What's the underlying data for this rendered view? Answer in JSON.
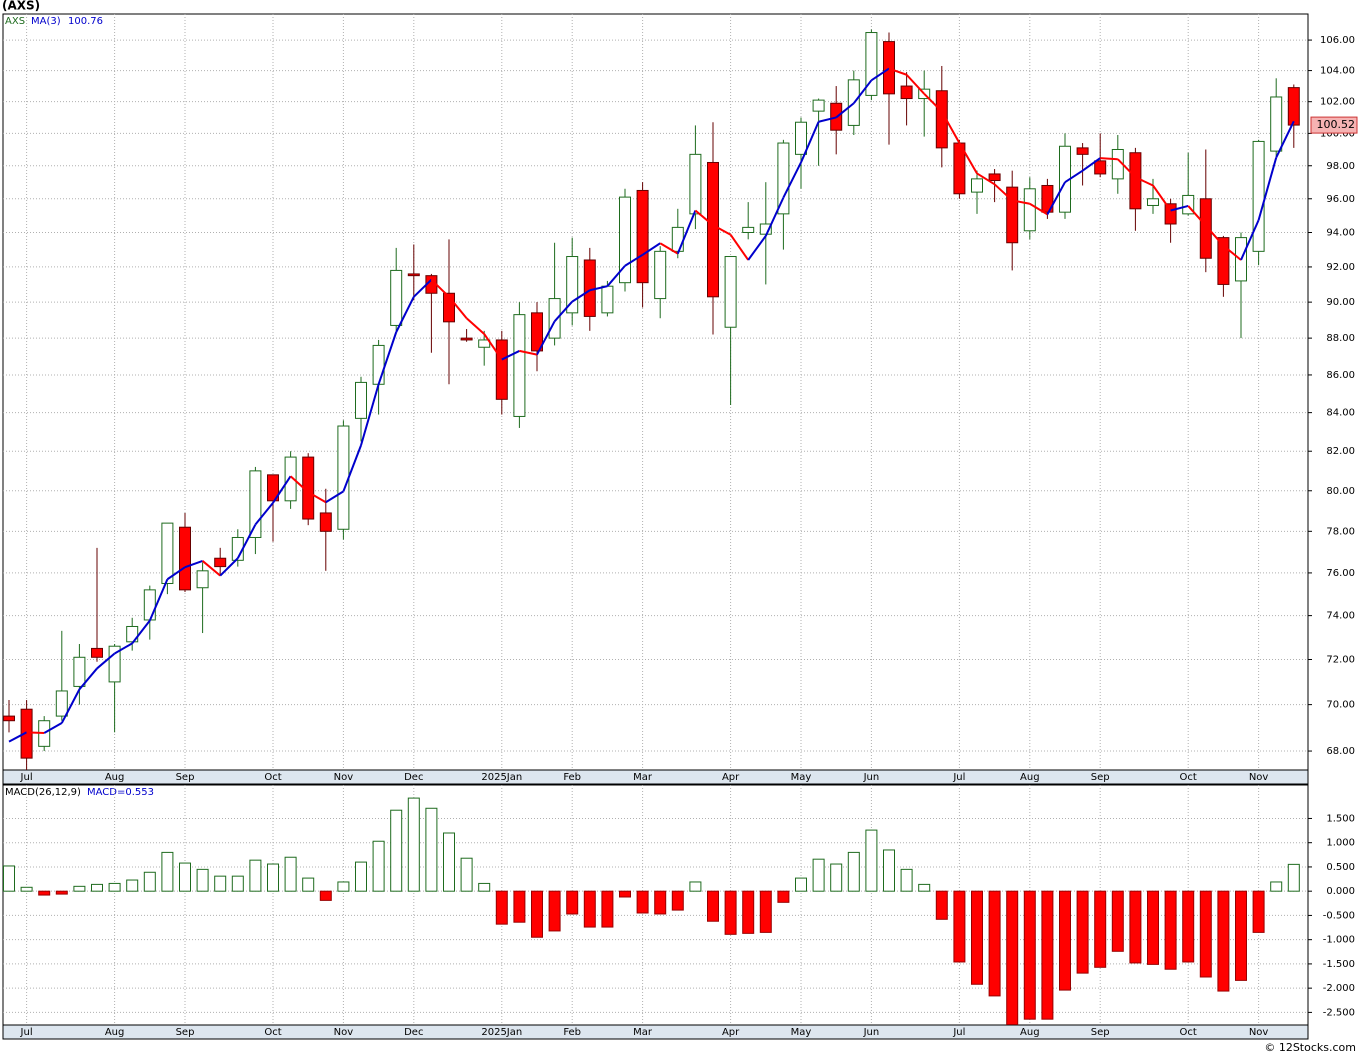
{
  "chart_data": [
    {
      "type": "candlestick",
      "title": "(AXS)",
      "ticker": "AXS",
      "log_scale": true,
      "grid": true,
      "categories": [
        null,
        "Jul",
        null,
        null,
        null,
        null,
        "Aug",
        null,
        null,
        null,
        "Sep",
        null,
        null,
        null,
        null,
        "Oct",
        null,
        null,
        null,
        "Nov",
        null,
        null,
        null,
        "Dec",
        null,
        null,
        null,
        null,
        "2025Jan",
        null,
        null,
        null,
        "Feb",
        null,
        null,
        null,
        "Mar",
        null,
        null,
        null,
        null,
        "Apr",
        null,
        null,
        null,
        "May",
        null,
        null,
        null,
        "Jun",
        null,
        null,
        null,
        null,
        "Jul",
        null,
        null,
        null,
        "Aug",
        null,
        null,
        null,
        "Sep",
        null,
        null,
        null,
        null,
        "Oct",
        null,
        null,
        null,
        "Nov",
        null,
        null
      ],
      "open": [
        69.5,
        69.8,
        68.2,
        69.5,
        70.8,
        72.5,
        71.0,
        72.8,
        73.8,
        75.5,
        78.2,
        75.3,
        76.7,
        76.6,
        77.7,
        80.8,
        79.5,
        81.7,
        78.9,
        78.1,
        83.7,
        85.5,
        88.7,
        91.6,
        91.5,
        90.5,
        88.0,
        87.5,
        87.9,
        83.8,
        89.4,
        88.0,
        89.4,
        92.4,
        89.4,
        91.1,
        96.5,
        90.2,
        92.9,
        95.1,
        98.2,
        88.6,
        94.0,
        93.9,
        95.1,
        98.7,
        101.4,
        101.9,
        100.5,
        102.4,
        105.9,
        103.0,
        102.2,
        102.7,
        99.4,
        96.4,
        97.5,
        96.7,
        94.1,
        96.8,
        95.2,
        99.1,
        98.3,
        97.2,
        98.8,
        95.6,
        95.7,
        95.1,
        96.0,
        93.7,
        91.2,
        92.9,
        98.9,
        102.9
      ],
      "high": [
        70.2,
        70.2,
        69.5,
        73.3,
        72.7,
        77.2,
        72.7,
        73.9,
        75.4,
        78.4,
        78.9,
        76.5,
        77.2,
        78.1,
        81.2,
        80.8,
        82.0,
        81.9,
        80.1,
        83.6,
        85.9,
        87.9,
        93.1,
        93.3,
        91.6,
        93.6,
        88.5,
        88.4,
        88.4,
        90.0,
        90.0,
        93.4,
        93.7,
        93.1,
        91.2,
        96.6,
        97.0,
        93.2,
        95.4,
        100.5,
        100.7,
        92.6,
        95.8,
        97.0,
        99.6,
        101.0,
        102.2,
        103.0,
        104.0,
        106.7,
        106.5,
        103.9,
        104.0,
        104.3,
        99.6,
        97.7,
        97.8,
        97.7,
        97.3,
        97.2,
        100.0,
        99.4,
        100.0,
        99.9,
        99.1,
        97.2,
        96.0,
        98.8,
        99.0,
        93.8,
        94.0,
        99.6,
        103.5,
        103.1
      ],
      "low": [
        68.8,
        67.2,
        68.0,
        69.3,
        70.0,
        71.9,
        68.8,
        72.4,
        72.9,
        75.0,
        75.1,
        73.2,
        75.9,
        76.3,
        76.9,
        77.5,
        79.1,
        78.3,
        76.1,
        77.6,
        82.5,
        83.9,
        88.4,
        90.1,
        87.2,
        85.5,
        87.8,
        86.5,
        83.9,
        83.2,
        86.2,
        87.6,
        88.7,
        88.4,
        89.2,
        90.6,
        89.7,
        89.1,
        92.5,
        94.2,
        88.2,
        84.4,
        93.6,
        91.0,
        93.0,
        96.6,
        98.0,
        98.7,
        99.9,
        102.1,
        99.3,
        100.5,
        99.8,
        97.9,
        96.0,
        95.1,
        95.8,
        91.8,
        93.6,
        94.8,
        94.8,
        96.8,
        97.3,
        96.3,
        94.1,
        95.1,
        93.4,
        95.0,
        91.7,
        90.3,
        88.0,
        92.1,
        98.6,
        99.1
      ],
      "close": [
        69.3,
        67.7,
        69.3,
        70.6,
        72.1,
        72.1,
        72.6,
        73.5,
        75.2,
        78.4,
        75.2,
        76.1,
        76.3,
        77.7,
        81.0,
        79.5,
        81.7,
        78.6,
        78.0,
        83.3,
        85.6,
        87.6,
        91.8,
        91.5,
        90.5,
        88.9,
        87.9,
        87.9,
        84.7,
        89.3,
        87.3,
        90.2,
        92.6,
        89.2,
        90.9,
        96.1,
        91.1,
        92.9,
        94.3,
        98.7,
        90.3,
        92.6,
        94.3,
        94.5,
        99.4,
        100.7,
        102.1,
        100.2,
        103.4,
        106.5,
        102.5,
        102.2,
        102.8,
        99.1,
        96.3,
        97.2,
        97.1,
        93.4,
        96.6,
        95.2,
        99.2,
        98.7,
        97.5,
        99.0,
        95.4,
        96.0,
        94.5,
        96.2,
        92.5,
        91.0,
        93.7,
        99.5,
        102.3,
        100.52
      ],
      "up_color": "#1e6b1e",
      "down_color": "#ff0000",
      "ma": {
        "name": "MA(3)",
        "last": 100.76,
        "up_color": "#0000cc",
        "down_color": "#ff0000",
        "values": [
          68.4,
          68.8,
          68.77,
          69.2,
          70.67,
          71.6,
          72.27,
          72.73,
          73.77,
          75.7,
          76.27,
          76.57,
          75.87,
          76.7,
          78.33,
          79.4,
          80.73,
          79.93,
          79.43,
          79.97,
          82.3,
          85.5,
          88.33,
          90.3,
          91.27,
          90.3,
          89.1,
          88.23,
          86.83,
          87.3,
          87.1,
          88.93,
          90.03,
          90.67,
          90.9,
          92.07,
          92.7,
          93.37,
          92.77,
          95.3,
          94.43,
          93.87,
          92.4,
          93.8,
          96.07,
          98.2,
          100.73,
          101.0,
          101.9,
          103.37,
          104.13,
          103.73,
          102.5,
          101.37,
          99.4,
          97.53,
          96.87,
          95.9,
          95.7,
          95.07,
          97.0,
          97.7,
          98.47,
          98.4,
          97.3,
          96.8,
          95.3,
          95.57,
          94.4,
          93.23,
          92.4,
          94.73,
          98.5,
          100.76
        ]
      },
      "last_price": 100.52,
      "ylim": [
        67.2,
        107.74
      ],
      "yticks": [
        {
          "value": 68,
          "label": "68.00"
        },
        {
          "value": 70,
          "label": "70.00"
        },
        {
          "value": 72,
          "label": "72.00"
        },
        {
          "value": 74,
          "label": "74.00"
        },
        {
          "value": 76,
          "label": "76.00"
        },
        {
          "value": 78,
          "label": "78.00"
        },
        {
          "value": 80,
          "label": "80.00"
        },
        {
          "value": 82,
          "label": "82.00"
        },
        {
          "value": 84,
          "label": "84.00"
        },
        {
          "value": 86,
          "label": "86.00"
        },
        {
          "value": 88,
          "label": "88.00"
        },
        {
          "value": 90,
          "label": "90.00"
        },
        {
          "value": 92,
          "label": "92.00"
        },
        {
          "value": 94,
          "label": "94.00"
        },
        {
          "value": 96,
          "label": "96.00"
        },
        {
          "value": 98,
          "label": "98.00"
        },
        {
          "value": 100,
          "label": "100.00"
        },
        {
          "value": 102,
          "label": "102.00"
        },
        {
          "value": 104,
          "label": "104.00"
        },
        {
          "value": 106,
          "label": "106.00"
        }
      ]
    },
    {
      "type": "bar",
      "title": "MACD(26,12,9)",
      "last_label": "MACD=0.553",
      "grid": true,
      "categories": [
        null,
        "Jul",
        null,
        null,
        null,
        null,
        "Aug",
        null,
        null,
        null,
        "Sep",
        null,
        null,
        null,
        null,
        "Oct",
        null,
        null,
        null,
        "Nov",
        null,
        null,
        null,
        "Dec",
        null,
        null,
        null,
        null,
        "2025Jan",
        null,
        null,
        null,
        "Feb",
        null,
        null,
        null,
        "Mar",
        null,
        null,
        null,
        null,
        "Apr",
        null,
        null,
        null,
        "May",
        null,
        null,
        null,
        "Jun",
        null,
        null,
        null,
        null,
        "Jul",
        null,
        null,
        null,
        "Aug",
        null,
        null,
        null,
        "Sep",
        null,
        null,
        null,
        null,
        "Oct",
        null,
        null,
        null,
        "Nov",
        null,
        null
      ],
      "values": [
        0.52,
        0.08,
        -0.08,
        -0.06,
        0.1,
        0.14,
        0.16,
        0.23,
        0.39,
        0.8,
        0.58,
        0.45,
        0.31,
        0.31,
        0.64,
        0.56,
        0.7,
        0.27,
        -0.19,
        0.19,
        0.6,
        1.03,
        1.67,
        1.92,
        1.71,
        1.2,
        0.68,
        0.16,
        -0.68,
        -0.64,
        -0.95,
        -0.82,
        -0.47,
        -0.74,
        -0.74,
        -0.12,
        -0.45,
        -0.47,
        -0.39,
        0.19,
        -0.62,
        -0.89,
        -0.87,
        -0.85,
        -0.23,
        0.27,
        0.66,
        0.56,
        0.8,
        1.26,
        0.85,
        0.45,
        0.14,
        -0.58,
        -1.46,
        -1.92,
        -2.16,
        -2.75,
        -2.64,
        -2.64,
        -2.04,
        -1.69,
        -1.57,
        -1.24,
        -1.48,
        -1.51,
        -1.61,
        -1.46,
        -1.77,
        -2.06,
        -1.84,
        -0.85,
        0.19,
        0.553
      ],
      "pos_color": "#1e6b1e",
      "neg_color": "#ff0000",
      "ylim": [
        -2.76,
        2.19
      ],
      "yticks": [
        {
          "value": 1.5,
          "label": "1.500"
        },
        {
          "value": 1,
          "label": "1.000"
        },
        {
          "value": 0.5,
          "label": "0.500"
        },
        {
          "value": 0,
          "label": "0.000"
        },
        {
          "value": -0.5,
          "label": "-0.500"
        },
        {
          "value": -1,
          "label": "-1.000"
        },
        {
          "value": -1.5,
          "label": "-1.500"
        },
        {
          "value": -2,
          "label": "-2.000"
        },
        {
          "value": -2.5,
          "label": "-2.500"
        }
      ]
    }
  ],
  "footer": "© 12Stocks.com"
}
